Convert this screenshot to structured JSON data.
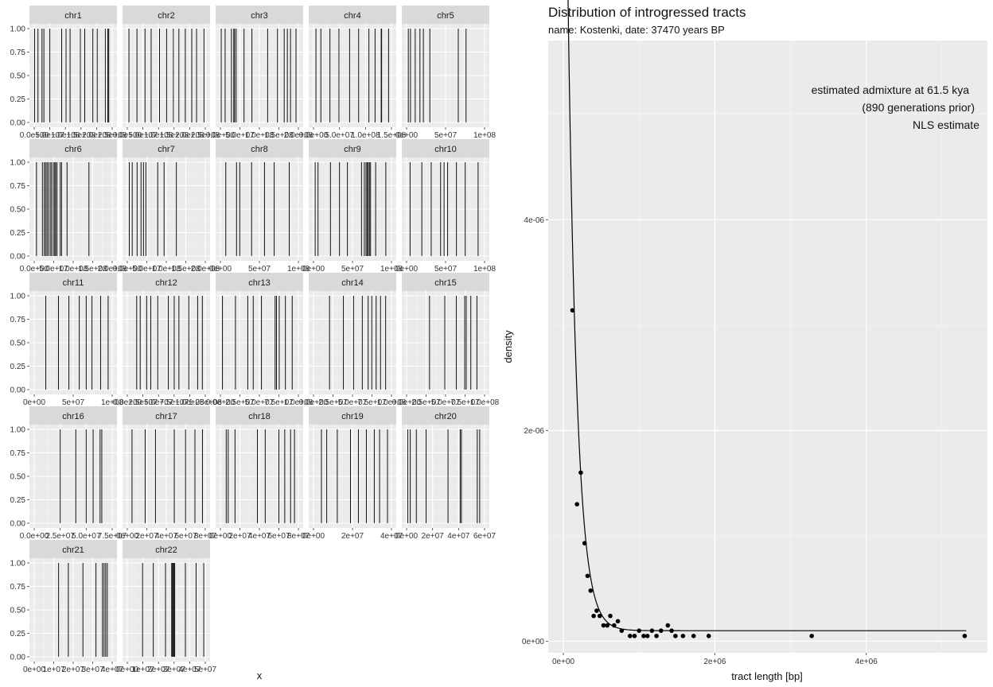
{
  "chart_data": [
    {
      "type": "faceted-tracts",
      "xlabel": "x",
      "y_ticks": [
        "0.00",
        "0.25",
        "0.50",
        "0.75",
        "1.00"
      ],
      "colors": {
        "panel_bg": "#ebebeb",
        "strip_bg": "#d9d9d9",
        "grid_major": "#ffffff",
        "grid_minor": "#f5f5f5",
        "mark": "#111111",
        "text": "#333333"
      },
      "panels": [
        {
          "name": "chr1",
          "xmax": 250000000,
          "x_ticks": [
            "0.0e+00",
            "5.0e+07",
            "1.0e+08",
            "1.5e+08",
            "2.0e+08",
            "2.5e+08"
          ],
          "tract_starts": [
            1200000,
            12000000,
            25000000,
            31000000,
            50000000,
            88000000,
            102000000,
            115000000,
            148000000,
            162000000,
            188000000,
            202000000,
            228000000,
            236000000,
            239000000
          ]
        },
        {
          "name": "chr2",
          "xmax": 242000000,
          "x_ticks": [
            "0.0e+00",
            "5.0e+07",
            "1.0e+08",
            "1.5e+08",
            "2.0e+08",
            "2.5e+08"
          ],
          "tract_starts": [
            5000000,
            30000000,
            55000000,
            74000000,
            100000000,
            122000000,
            143000000,
            160000000,
            180000000,
            200000000,
            215000000,
            238000000
          ]
        },
        {
          "name": "chr3",
          "xmax": 198000000,
          "x_ticks": [
            "0.0e+00",
            "5.0e+07",
            "1.0e+08",
            "1.5e+08",
            "2.0e+08"
          ],
          "tract_starts": [
            2000000,
            12000000,
            28000000,
            34000000,
            36000000,
            40000000,
            60000000,
            80000000,
            120000000,
            145000000,
            162000000,
            170000000,
            178000000,
            192000000
          ]
        },
        {
          "name": "chr4",
          "xmax": 190000000,
          "x_ticks": [
            "0.0e+00",
            "5.0e+07",
            "1.0e+08",
            "1.5e+08"
          ],
          "tract_starts": [
            6000000,
            18000000,
            40000000,
            62000000,
            88000000,
            110000000,
            135000000,
            150000000,
            165000000,
            166000000,
            183000000
          ]
        },
        {
          "name": "chr5",
          "xmax": 181000000,
          "x_ticks": [
            "0e+00",
            "5e+07",
            "1e+08"
          ],
          "tract_starts": [
            4000000,
            9000000,
            20000000,
            31000000,
            39000000,
            54000000,
            120000000,
            138000000
          ]
        },
        {
          "name": "chr6",
          "xmax": 171000000,
          "x_ticks": [
            "0.0e+00",
            "5.0e+07",
            "1.0e+08",
            "1.5e+08",
            "2.0e+08"
          ],
          "tract_starts": [
            5000000,
            18000000,
            22000000,
            25000000,
            28000000,
            31000000,
            35000000,
            38000000,
            42000000,
            45000000,
            47000000,
            50000000,
            57000000,
            60000000,
            72000000,
            120000000
          ]
        },
        {
          "name": "chr7",
          "xmax": 159000000,
          "x_ticks": [
            "0.0e+00",
            "5.0e+07",
            "1.0e+08",
            "1.5e+08",
            "2.0e+08"
          ],
          "tract_starts": [
            4000000,
            10000000,
            20000000,
            28000000,
            33000000,
            38000000,
            62000000,
            75000000,
            100000000
          ]
        },
        {
          "name": "chr8",
          "xmax": 145000000,
          "x_ticks": [
            "0e+00",
            "5e+07",
            "1e+08"
          ],
          "tract_starts": [
            10000000,
            30000000,
            36000000,
            58000000,
            82000000,
            100000000,
            128000000
          ]
        },
        {
          "name": "chr9",
          "xmax": 138000000,
          "x_ticks": [
            "0e+00",
            "5e+07",
            "1e+08"
          ],
          "tract_starts": [
            3000000,
            8000000,
            30000000,
            46000000,
            60000000,
            85000000,
            90000000,
            93000000,
            95000000,
            97000000,
            99000000,
            101000000,
            110000000,
            128000000
          ]
        },
        {
          "name": "chr10",
          "xmax": 133000000,
          "x_ticks": [
            "0e+00",
            "5e+07",
            "1e+08"
          ],
          "tract_starts": [
            6000000,
            26000000,
            42000000,
            58000000,
            64000000,
            70000000,
            85000000,
            100000000,
            122000000
          ]
        },
        {
          "name": "chr11",
          "xmax": 135000000,
          "x_ticks": [
            "0e+00",
            "5e+07",
            "1e+08"
          ],
          "tract_starts": [
            20000000,
            42000000,
            60000000,
            78000000,
            90000000,
            100000000,
            115000000,
            128000000
          ]
        },
        {
          "name": "chr12",
          "xmax": 133000000,
          "x_ticks": [
            "0.0e+00",
            "2.5e+07",
            "5.0e+07",
            "7.5e+07",
            "1.0e+08",
            "1.25e+08"
          ],
          "tract_starts": [
            16000000,
            22000000,
            33000000,
            40000000,
            52000000,
            70000000,
            80000000,
            88000000,
            105000000,
            120000000,
            128000000
          ]
        },
        {
          "name": "chr13",
          "xmax": 114000000,
          "x_ticks": [
            "0.0e+00",
            "2.5e+07",
            "5.0e+07",
            "7.5e+07",
            "1.0e+08"
          ],
          "tract_starts": [
            3000000,
            22000000,
            40000000,
            48000000,
            60000000,
            80000000,
            82000000,
            86000000,
            95000000,
            105000000
          ]
        },
        {
          "name": "chr14",
          "xmax": 107000000,
          "x_ticks": [
            "0.0e+00",
            "2.5e+07",
            "5.0e+07",
            "7.5e+07",
            "1.0e+08"
          ],
          "tract_starts": [
            22000000,
            41000000,
            55000000,
            67000000,
            75000000,
            80000000,
            86000000,
            92000000,
            99000000
          ]
        },
        {
          "name": "chr15",
          "xmax": 102000000,
          "x_ticks": [
            "0.0e+00",
            "2.5e+07",
            "5.0e+07",
            "7.5e+07",
            "1.0e+08"
          ],
          "tract_starts": [
            30000000,
            50000000,
            65000000,
            76000000,
            78000000,
            84000000,
            92000000
          ]
        },
        {
          "name": "chr16",
          "xmax": 90000000,
          "x_ticks": [
            "0.0e+00",
            "2.5e+07",
            "5.0e+07",
            "7.5e+07"
          ],
          "tract_starts": [
            30000000,
            48000000,
            60000000,
            68000000,
            76000000,
            78000000
          ]
        },
        {
          "name": "chr17",
          "xmax": 83000000,
          "x_ticks": [
            "0e+00",
            "2e+07",
            "4e+07",
            "6e+07",
            "8e+07"
          ],
          "tract_starts": [
            5000000,
            19000000,
            30000000,
            50000000,
            62000000,
            72000000,
            80000000
          ]
        },
        {
          "name": "chr18",
          "xmax": 80000000,
          "x_ticks": [
            "0e+00",
            "2e+07",
            "4e+07",
            "6e+07",
            "8e+07"
          ],
          "tract_starts": [
            6000000,
            8000000,
            15000000,
            38000000,
            46000000,
            60000000,
            66000000,
            72000000,
            76000000
          ]
        },
        {
          "name": "chr19",
          "xmax": 59000000,
          "x_ticks": [
            "0e+00",
            "2e+07",
            "4e+07"
          ],
          "tract_starts": [
            6000000,
            10000000,
            18000000,
            28000000,
            34000000,
            40000000,
            46000000,
            50000000,
            56000000
          ]
        },
        {
          "name": "chr20",
          "xmax": 64000000,
          "x_ticks": [
            "0e+00",
            "2e+07",
            "4e+07",
            "6e+07"
          ],
          "tract_starts": [
            1000000,
            3000000,
            8000000,
            16000000,
            34000000,
            44000000,
            45000000,
            58000000,
            60000000
          ]
        },
        {
          "name": "chr21",
          "xmax": 48000000,
          "x_ticks": [
            "0e+00",
            "1e+07",
            "2e+07",
            "3e+07",
            "4e+07"
          ],
          "tract_starts": [
            15000000,
            21000000,
            30000000,
            38000000,
            42000000,
            43000000,
            44000000,
            45000000
          ]
        },
        {
          "name": "chr22",
          "xmax": 51000000,
          "x_ticks": [
            "0e+00",
            "1e+07",
            "2e+07",
            "3e+07",
            "4e+07",
            "5e+07"
          ],
          "tract_starts": [
            10000000,
            17000000,
            25000000,
            29000000,
            29500000,
            30000000,
            30500000,
            31000000,
            38000000,
            45000000,
            50000000
          ]
        }
      ]
    },
    {
      "type": "scatter",
      "title": "Distribution of introgressed tracts",
      "subtitle": "name: Kostenki, date: 37470 years BP",
      "xlabel": "tract length [bp]",
      "ylabel": "density",
      "xlim": [
        -200000,
        5600000
      ],
      "ylim": [
        -1.1e-07,
        5.7e-06
      ],
      "x_ticks": [
        {
          "value": 0,
          "label": "0e+00"
        },
        {
          "value": 2000000,
          "label": "2e+06"
        },
        {
          "value": 4000000,
          "label": "4e+06"
        }
      ],
      "y_ticks": [
        {
          "value": 0,
          "label": "0e+00"
        },
        {
          "value": 2e-06,
          "label": "2e-06"
        },
        {
          "value": 4e-06,
          "label": "4e-06"
        }
      ],
      "annotation": [
        "estimated admixture at 61.5 kya",
        "(890 generations prior)",
        "NLS estimate"
      ],
      "grid": true,
      "colors": {
        "panel_bg": "#ebebeb",
        "grid_major": "#ffffff",
        "grid_minor": "#f5f5f5",
        "point": "#000000",
        "curve": "#000000"
      },
      "points": [
        {
          "x": 120000,
          "y": 3.14e-06
        },
        {
          "x": 180000,
          "y": 1.3e-06
        },
        {
          "x": 230000,
          "y": 1.6e-06
        },
        {
          "x": 280000,
          "y": 9.3e-07
        },
        {
          "x": 320000,
          "y": 6.2e-07
        },
        {
          "x": 360000,
          "y": 4.8e-07
        },
        {
          "x": 400000,
          "y": 2.4e-07
        },
        {
          "x": 440000,
          "y": 2.9e-07
        },
        {
          "x": 480000,
          "y": 2.4e-07
        },
        {
          "x": 530000,
          "y": 1.5e-07
        },
        {
          "x": 580000,
          "y": 1.5e-07
        },
        {
          "x": 620000,
          "y": 2.4e-07
        },
        {
          "x": 670000,
          "y": 1.5e-07
        },
        {
          "x": 720000,
          "y": 1.9e-07
        },
        {
          "x": 770000,
          "y": 1e-07
        },
        {
          "x": 880000,
          "y": 5e-08
        },
        {
          "x": 940000,
          "y": 5e-08
        },
        {
          "x": 1000000,
          "y": 1e-07
        },
        {
          "x": 1060000,
          "y": 5e-08
        },
        {
          "x": 1110000,
          "y": 5e-08
        },
        {
          "x": 1170000,
          "y": 1e-07
        },
        {
          "x": 1230000,
          "y": 5e-08
        },
        {
          "x": 1290000,
          "y": 1e-07
        },
        {
          "x": 1380000,
          "y": 1.5e-07
        },
        {
          "x": 1430000,
          "y": 1e-07
        },
        {
          "x": 1480000,
          "y": 5e-08
        },
        {
          "x": 1580000,
          "y": 5e-08
        },
        {
          "x": 1720000,
          "y": 5e-08
        },
        {
          "x": 1920000,
          "y": 5e-08
        },
        {
          "x": 3280000,
          "y": 5e-08
        },
        {
          "x": 5300000,
          "y": 5e-08
        }
      ],
      "fit": {
        "curve": "exponential",
        "a": 1e-05,
        "rate": 8.3e-06,
        "c": 1e-07,
        "x_range": [
          50000,
          5320000
        ]
      }
    }
  ]
}
